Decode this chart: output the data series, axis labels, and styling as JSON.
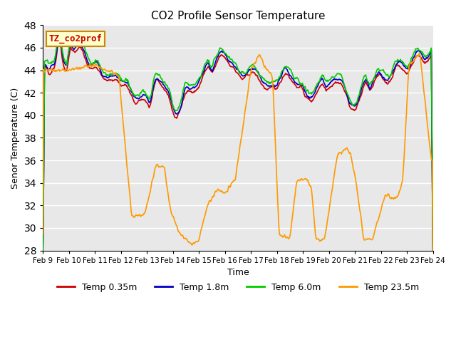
{
  "title": "CO2 Profile Sensor Temperature",
  "ylabel": "Senor Temperature (C)",
  "xlabel": "Time",
  "ylim": [
    28,
    48
  ],
  "xlim": [
    0,
    360
  ],
  "bg_color": "#e8e8e8",
  "grid_color": "#ffffff",
  "annotation_text": "TZ_co2prof",
  "annotation_bg": "#ffffcc",
  "annotation_border": "#cc8800",
  "annotation_text_color": "#cc0000",
  "xtick_labels": [
    "Feb 9",
    "Feb 10",
    "Feb 11",
    "Feb 12",
    "Feb 13",
    "Feb 14",
    "Feb 15",
    "Feb 16",
    "Feb 17",
    "Feb 18",
    "Feb 19",
    "Feb 20",
    "Feb 21",
    "Feb 22",
    "Feb 23",
    "Feb 24"
  ],
  "legend_labels": [
    "Temp 0.35m",
    "Temp 1.8m",
    "Temp 6.0m",
    "Temp 23.5m"
  ],
  "colors": [
    "#cc0000",
    "#0000cc",
    "#00cc00",
    "#ff9900"
  ],
  "linewidth": 1.2
}
